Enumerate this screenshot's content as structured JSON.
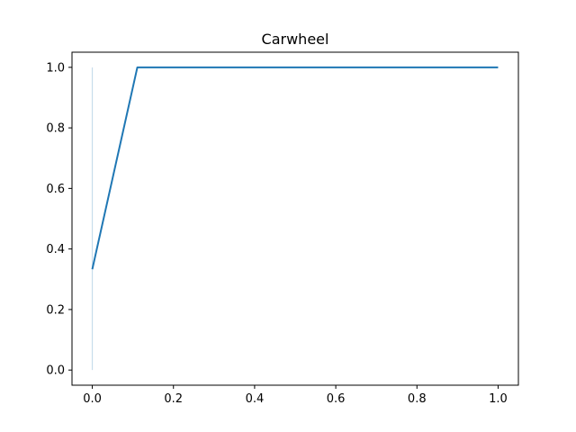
{
  "chart_data": {
    "type": "line",
    "title": "Carwheel",
    "xlabel": "",
    "ylabel": "",
    "xlim": [
      -0.05,
      1.05
    ],
    "ylim": [
      -0.05,
      1.05
    ],
    "grid": false,
    "x_ticks": [
      0.0,
      0.2,
      0.4,
      0.6,
      0.8,
      1.0
    ],
    "x_tick_labels": [
      "0.0",
      "0.2",
      "0.4",
      "0.6",
      "0.8",
      "1.0"
    ],
    "y_ticks": [
      0.0,
      0.2,
      0.4,
      0.6,
      0.8,
      1.0
    ],
    "y_tick_labels": [
      "0.0",
      "0.2",
      "0.4",
      "0.6",
      "0.8",
      "1.0"
    ],
    "series": [
      {
        "x": [
          0.0,
          0.111,
          1.0
        ],
        "y": [
          0.333,
          1.0,
          1.0
        ],
        "color": "#1f77b4"
      }
    ],
    "band": {
      "x": 0.0,
      "y_range": [
        0.0,
        1.0
      ],
      "color": "#1f77b4",
      "opacity": 0.25
    }
  }
}
